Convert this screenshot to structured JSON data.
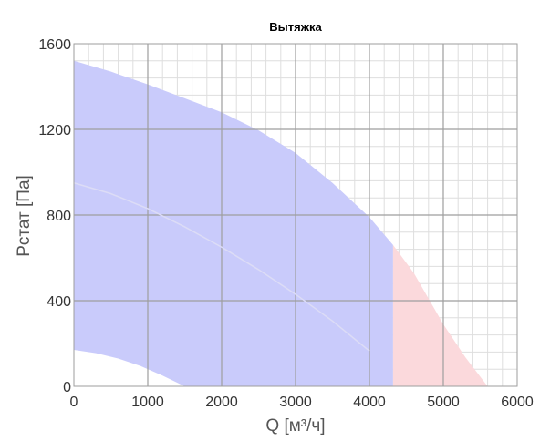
{
  "chart_data": {
    "type": "area",
    "title": "Вытяжка",
    "xlabel": "Q [м³/ч]",
    "ylabel": "Pстат [Па]",
    "xlim": [
      0,
      6000
    ],
    "ylim": [
      0,
      1600
    ],
    "x_ticks": [
      "0",
      "1000",
      "2000",
      "3000",
      "4000",
      "5000",
      "6000"
    ],
    "y_ticks": [
      "0",
      "400",
      "800",
      "1200",
      "1600"
    ],
    "grid": true,
    "colors": {
      "operating_area": "#c9cbfb",
      "out_of_range_area": "#fbd9dc",
      "major_grid": "#9e9e9e",
      "minor_grid": "#dedede",
      "inner_curve": "#dcdcf6"
    },
    "series": [
      {
        "role": "upper_boundary",
        "x": [
          0,
          500,
          1000,
          1500,
          2000,
          2500,
          3000,
          3500,
          4000,
          4320,
          4600,
          5000,
          5300,
          5600
        ],
        "y": [
          1520,
          1470,
          1410,
          1345,
          1280,
          1195,
          1090,
          950,
          790,
          660,
          530,
          290,
          135,
          0
        ]
      },
      {
        "role": "lower_boundary",
        "x": [
          0,
          300,
          600,
          900,
          1200,
          1500
        ],
        "y": [
          170,
          155,
          130,
          95,
          50,
          0
        ]
      },
      {
        "role": "inner_curve",
        "x": [
          0,
          500,
          1000,
          1500,
          2000,
          2500,
          3000,
          3500,
          4000
        ],
        "y": [
          950,
          900,
          830,
          745,
          650,
          545,
          430,
          305,
          165
        ]
      },
      {
        "role": "range_limit",
        "x": [
          4320,
          4320
        ],
        "y": [
          0,
          660
        ]
      }
    ]
  }
}
